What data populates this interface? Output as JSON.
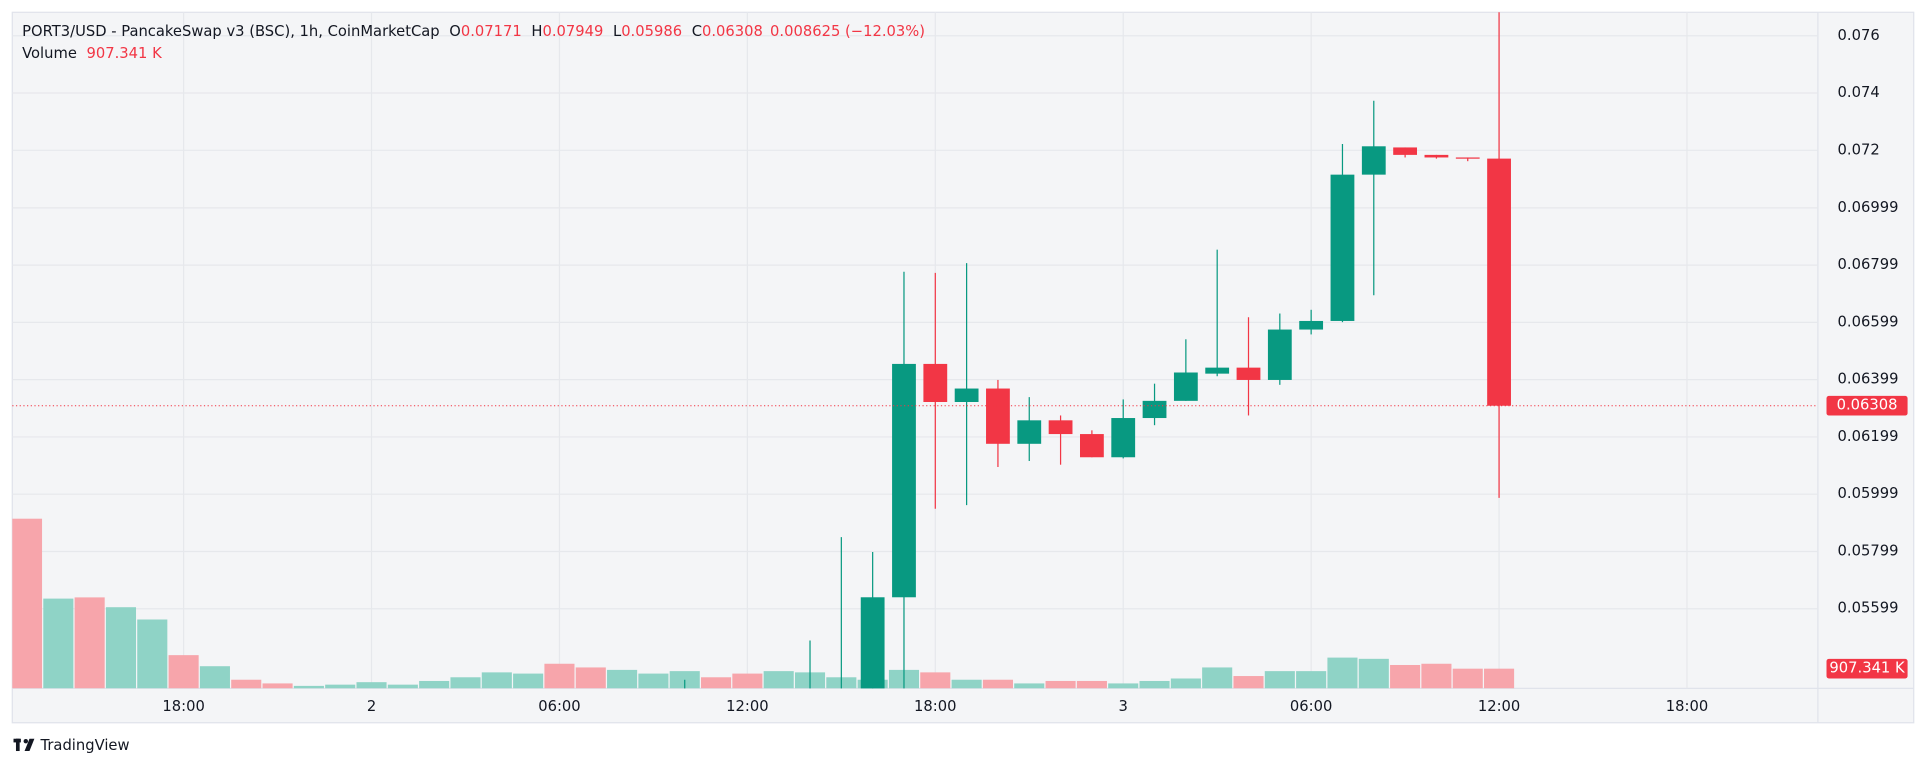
{
  "chart_data": {
    "type": "candlestick",
    "title": "PORT3/USD - PancakeSwap v3 (BSC), 1h, CoinMarketCap",
    "ohlc_letters": [
      "O",
      "H",
      "L",
      "C"
    ],
    "change": "0.008625 (−12.03%)",
    "volume_title": "Volume",
    "categories": [
      null,
      null,
      null,
      null,
      null,
      null,
      null,
      null,
      null,
      null,
      null,
      null,
      null,
      null,
      null,
      null,
      null,
      null,
      null,
      null,
      null,
      null,
      null,
      null,
      null,
      null,
      null,
      null,
      null,
      null,
      null,
      null,
      null,
      null,
      null,
      null,
      null,
      null,
      null,
      null,
      null,
      null,
      null,
      null,
      null,
      null,
      null,
      null
    ],
    "open": [
      null,
      null,
      null,
      null,
      null,
      null,
      null,
      null,
      null,
      null,
      null,
      null,
      null,
      null,
      null,
      null,
      null,
      null,
      null,
      null,
      null,
      null,
      null,
      null,
      null,
      null,
      null,
      null,
      0.05639,
      0.06454,
      0.06321,
      0.06368,
      0.06175,
      0.06257,
      0.06209,
      0.06128,
      0.06265,
      0.06325,
      0.0642,
      0.06441,
      0.06398,
      0.06574,
      0.06604,
      0.07115,
      0.0721,
      0.07184,
      0.07175,
      0.07171
    ],
    "high": [
      null,
      null,
      null,
      null,
      null,
      null,
      null,
      null,
      null,
      null,
      null,
      null,
      null,
      null,
      null,
      null,
      null,
      null,
      null,
      null,
      null,
      0.05351,
      null,
      null,
      null,
      0.05488,
      0.05849,
      0.05797,
      0.06776,
      0.06772,
      0.06806,
      0.06398,
      0.06338,
      0.06274,
      0.06222,
      0.0633,
      0.06385,
      0.0654,
      0.06853,
      0.06617,
      0.0663,
      0.06643,
      0.07222,
      0.07373,
      0.0721,
      0.07184,
      0.07175,
      0.07949
    ],
    "low": [
      null,
      null,
      null,
      null,
      null,
      null,
      null,
      null,
      null,
      null,
      null,
      null,
      null,
      null,
      null,
      null,
      null,
      null,
      null,
      null,
      null,
      null,
      null,
      null,
      null,
      null,
      null,
      null,
      null,
      0.05948,
      0.05961,
      0.06094,
      0.06115,
      0.06102,
      0.06128,
      0.06124,
      0.0624,
      0.06325,
      0.06411,
      0.06274,
      0.06381,
      0.06557,
      0.066,
      0.06694,
      0.07175,
      0.07171,
      0.07162,
      0.05986
    ],
    "close": [
      null,
      null,
      null,
      null,
      null,
      null,
      null,
      null,
      null,
      null,
      null,
      null,
      null,
      null,
      null,
      null,
      null,
      null,
      null,
      null,
      null,
      null,
      null,
      null,
      null,
      null,
      null,
      0.05639,
      0.06454,
      0.06321,
      0.06368,
      0.06175,
      0.06257,
      0.06209,
      0.06128,
      0.06265,
      0.06325,
      0.06424,
      0.06441,
      0.06398,
      0.06574,
      0.06604,
      0.07115,
      0.07214,
      0.07184,
      0.07175,
      0.07171,
      0.06308
    ],
    "up_color": "#089981",
    "down_color": "#f23645",
    "volume": {
      "values": [
        7826000,
        4140000,
        4196000,
        3743000,
        3176000,
        1531000,
        1021000,
        397000,
        227000,
        113000,
        170000,
        284000,
        170000,
        340000,
        510000,
        737000,
        680000,
        1134000,
        964000,
        851000,
        680000,
        794000,
        510000,
        680000,
        794000,
        737000,
        510000,
        397000,
        851000,
        737000,
        397000,
        397000,
        227000,
        340000,
        340000,
        227000,
        340000,
        454000,
        964000,
        567000,
        794000,
        794000,
        1418000,
        1361000,
        1077000,
        1134000,
        907000,
        907341
      ],
      "value_labels": [
        null,
        null,
        null,
        null,
        null,
        null,
        null,
        null,
        null,
        null,
        null,
        null,
        null,
        null,
        null,
        null,
        null,
        null,
        null,
        null,
        null,
        null,
        null,
        null,
        null,
        null,
        null,
        null,
        null,
        null,
        null,
        null,
        null,
        null,
        null,
        null,
        null,
        null,
        null,
        null,
        null,
        null,
        null,
        null,
        null,
        null,
        null,
        "907.341 K"
      ],
      "colors": [
        "#f7a5ab",
        "#8fd3c6",
        "#f7a5ab",
        "#8fd3c6",
        "#8fd3c6",
        "#f7a5ab",
        "#8fd3c6",
        "#f7a5ab",
        "#f7a5ab",
        "#8fd3c6",
        "#8fd3c6",
        "#8fd3c6",
        "#8fd3c6",
        "#8fd3c6",
        "#8fd3c6",
        "#8fd3c6",
        "#8fd3c6",
        "#f7a5ab",
        "#f7a5ab",
        "#8fd3c6",
        "#8fd3c6",
        "#8fd3c6",
        "#f7a5ab",
        "#f7a5ab",
        "#8fd3c6",
        "#8fd3c6",
        "#8fd3c6",
        "#8fd3c6",
        "#8fd3c6",
        "#f7a5ab",
        "#8fd3c6",
        "#f7a5ab",
        "#8fd3c6",
        "#f7a5ab",
        "#f7a5ab",
        "#8fd3c6",
        "#8fd3c6",
        "#8fd3c6",
        "#8fd3c6",
        "#f7a5ab",
        "#8fd3c6",
        "#8fd3c6",
        "#8fd3c6",
        "#8fd3c6",
        "#f7a5ab",
        "#f7a5ab",
        "#f7a5ab",
        "#f7a5ab"
      ]
    },
    "xlim": [
      -0.47,
      57.18
    ],
    "xticks": [
      {
        "value": 5,
        "label": "18:00"
      },
      {
        "value": 11,
        "label": "2"
      },
      {
        "value": 17,
        "label": "06:00"
      },
      {
        "value": 23,
        "label": "12:00"
      },
      {
        "value": 29,
        "label": "18:00"
      },
      {
        "value": 35,
        "label": "3"
      },
      {
        "value": 41,
        "label": "06:00"
      },
      {
        "value": 47,
        "label": "12:00"
      },
      {
        "value": 53,
        "label": "18:00"
      }
    ],
    "ylim": [
      0.05321,
      0.07682
    ],
    "yticks": [
      0.05599,
      0.05799,
      0.05999,
      0.06199,
      0.06399,
      0.06599,
      0.06799,
      0.06999,
      0.072,
      0.074,
      0.076
    ],
    "y2lim": [
      0,
      31190000
    ],
    "grid": true
  },
  "brand": "TradingView"
}
